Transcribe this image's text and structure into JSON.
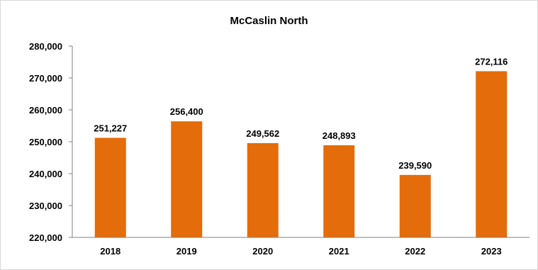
{
  "chart_data": {
    "type": "bar",
    "title": "McCaslin North",
    "categories": [
      "2018",
      "2019",
      "2020",
      "2021",
      "2022",
      "2023"
    ],
    "values": [
      251227,
      256400,
      249562,
      248893,
      239590,
      272116
    ],
    "data_labels": [
      "251,227",
      "256,400",
      "249,562",
      "248,893",
      "239,590",
      "272,116"
    ],
    "ylim": [
      220000,
      280000
    ],
    "yticks": [
      220000,
      230000,
      240000,
      250000,
      260000,
      270000,
      280000
    ],
    "ytick_labels": [
      "220,000",
      "230,000",
      "240,000",
      "250,000",
      "260,000",
      "270,000",
      "280,000"
    ],
    "xlabel": "",
    "ylabel": "",
    "grid": false,
    "legend": "none",
    "bar_color": "#E46C0A"
  }
}
